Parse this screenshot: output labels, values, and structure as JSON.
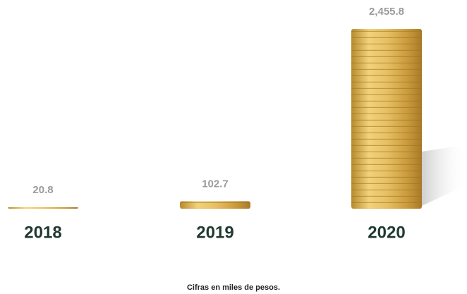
{
  "chart_data": {
    "type": "bar",
    "categories": [
      "2018",
      "2019",
      "2020"
    ],
    "values": [
      20.8,
      102.7,
      2455.8
    ],
    "value_labels": [
      "20.8",
      "102.7",
      "2,455.8"
    ],
    "color": "#d9b65a",
    "note": "Cifras en miles de pesos."
  }
}
